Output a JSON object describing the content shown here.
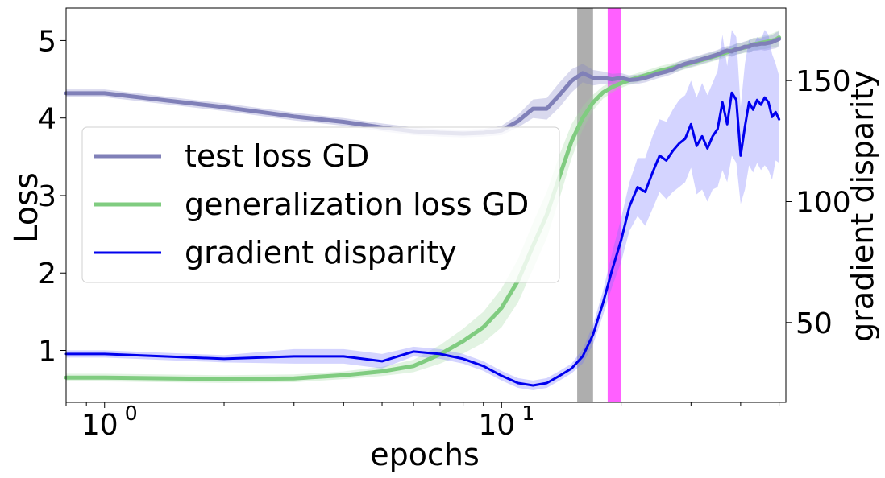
{
  "chart_data": {
    "type": "line",
    "title": "",
    "xlabel": "epochs",
    "ylabel_left": "Loss",
    "ylabel_right": "gradient disparity",
    "xscale": "log",
    "xlim": [
      0.8,
      52
    ],
    "ylim_left": [
      0.33,
      5.42
    ],
    "ylim_right": [
      17,
      180
    ],
    "x_ticks": [
      {
        "value": 1,
        "base": "10",
        "exp": "0"
      },
      {
        "value": 10,
        "base": "10",
        "exp": "1"
      }
    ],
    "y_ticks_left": [
      "1",
      "2",
      "3",
      "4",
      "5"
    ],
    "y_ticks_right": [
      "50",
      "100",
      "150"
    ],
    "legend": {
      "position": "center-left",
      "entries": [
        "test loss GD",
        "generalization loss GD",
        "gradient disparity"
      ]
    },
    "vertical_bands": [
      {
        "from": 15.5,
        "to": 17,
        "color": "#aaaaaa",
        "name": "gray-band"
      },
      {
        "from": 18.5,
        "to": 20,
        "color": "#ff44ff",
        "name": "magenta-band"
      }
    ],
    "series": [
      {
        "name": "test loss GD",
        "axis": "left",
        "color": "#8080b8",
        "band_color": "#8080c8",
        "x": [
          0.8,
          1,
          2,
          3,
          4,
          5,
          6,
          7,
          8,
          9,
          10,
          11,
          12,
          13,
          14,
          15,
          16,
          17,
          18,
          19,
          20,
          21,
          22,
          23,
          24,
          25,
          26,
          27,
          28,
          29,
          30,
          31,
          32,
          33,
          34,
          35,
          36,
          37,
          38,
          39,
          40,
          41,
          42,
          43,
          44,
          45,
          46,
          47,
          48,
          49,
          50
        ],
        "values": [
          4.32,
          4.32,
          4.14,
          4.02,
          3.95,
          3.88,
          3.83,
          3.81,
          3.8,
          3.81,
          3.84,
          3.96,
          4.12,
          4.12,
          4.3,
          4.48,
          4.58,
          4.52,
          4.52,
          4.5,
          4.52,
          4.49,
          4.5,
          4.52,
          4.55,
          4.58,
          4.6,
          4.63,
          4.67,
          4.7,
          4.72,
          4.74,
          4.76,
          4.78,
          4.8,
          4.82,
          4.85,
          4.87,
          4.86,
          4.89,
          4.9,
          4.92,
          4.92,
          4.95,
          4.95,
          4.96,
          4.96,
          4.97,
          4.98,
          5.0,
          5.02
        ],
        "band": [
          0.05,
          0.05,
          0.05,
          0.05,
          0.05,
          0.05,
          0.05,
          0.05,
          0.05,
          0.05,
          0.06,
          0.08,
          0.12,
          0.14,
          0.16,
          0.15,
          0.12,
          0.1,
          0.08,
          0.07,
          0.06,
          0.06,
          0.06,
          0.06,
          0.06,
          0.06,
          0.06,
          0.06,
          0.06,
          0.06,
          0.06,
          0.06,
          0.06,
          0.06,
          0.06,
          0.06,
          0.06,
          0.06,
          0.07,
          0.07,
          0.07,
          0.07,
          0.08,
          0.08,
          0.08,
          0.08,
          0.09,
          0.09,
          0.09,
          0.1,
          0.1
        ]
      },
      {
        "name": "generalization loss GD",
        "axis": "left",
        "color": "#80cc80",
        "band_color": "#9ed89e",
        "x": [
          0.8,
          1,
          2,
          3,
          4,
          5,
          6,
          7,
          8,
          9,
          10,
          11,
          12,
          13,
          14,
          15,
          16,
          17,
          18,
          19,
          20,
          21,
          22,
          23,
          24,
          25,
          26,
          27,
          28,
          29,
          30,
          31,
          32,
          33,
          34,
          35,
          36,
          37,
          38,
          39,
          40,
          41,
          42,
          43,
          44,
          45,
          46,
          47,
          48,
          49,
          50
        ],
        "values": [
          0.65,
          0.65,
          0.63,
          0.64,
          0.68,
          0.73,
          0.8,
          0.95,
          1.12,
          1.3,
          1.55,
          1.9,
          2.35,
          2.75,
          3.25,
          3.7,
          4.0,
          4.2,
          4.33,
          4.4,
          4.45,
          4.49,
          4.52,
          4.55,
          4.58,
          4.61,
          4.63,
          4.65,
          4.67,
          4.69,
          4.71,
          4.73,
          4.75,
          4.77,
          4.79,
          4.81,
          4.83,
          4.85,
          4.87,
          4.89,
          4.9,
          4.91,
          4.93,
          4.95,
          4.96,
          4.97,
          4.98,
          4.99,
          5.0,
          5.01,
          5.04
        ],
        "band": [
          0.05,
          0.05,
          0.05,
          0.05,
          0.05,
          0.06,
          0.08,
          0.12,
          0.16,
          0.2,
          0.25,
          0.28,
          0.3,
          0.3,
          0.28,
          0.22,
          0.15,
          0.1,
          0.08,
          0.07,
          0.06,
          0.06,
          0.06,
          0.06,
          0.06,
          0.06,
          0.06,
          0.06,
          0.06,
          0.06,
          0.06,
          0.06,
          0.06,
          0.06,
          0.06,
          0.06,
          0.06,
          0.06,
          0.07,
          0.07,
          0.07,
          0.07,
          0.08,
          0.08,
          0.08,
          0.08,
          0.09,
          0.09,
          0.09,
          0.1,
          0.1
        ]
      },
      {
        "name": "gradient disparity",
        "axis": "right",
        "color": "#0000ee",
        "band_color": "#7070ff",
        "x": [
          0.8,
          1,
          2,
          3,
          4,
          5,
          6,
          7,
          8,
          9,
          10,
          11,
          12,
          13,
          14,
          15,
          16,
          17,
          18,
          19,
          20,
          21,
          22,
          23,
          24,
          25,
          26,
          27,
          28,
          29,
          30,
          31,
          32,
          33,
          34,
          35,
          36,
          37,
          38,
          39,
          40,
          41,
          42,
          43,
          44,
          45,
          46,
          47,
          48,
          49,
          50
        ],
        "values": [
          37,
          37,
          35,
          36,
          36,
          34,
          38,
          37,
          35,
          32,
          28,
          25,
          24,
          25,
          28,
          31,
          36,
          45,
          58,
          72,
          84,
          98,
          106,
          104,
          112,
          119,
          117,
          121,
          124,
          126,
          132,
          123,
          127,
          122,
          127,
          130,
          141,
          132,
          145,
          142,
          119,
          131,
          141,
          138,
          142,
          140,
          143,
          141,
          135,
          137,
          134
        ],
        "band": [
          1.5,
          1.5,
          1.5,
          3,
          3,
          3,
          2,
          2,
          2,
          2,
          2,
          2,
          2,
          2,
          2,
          2,
          3,
          4,
          5,
          7,
          9,
          10,
          12,
          14,
          15,
          15,
          16,
          17,
          18,
          18,
          18,
          20,
          22,
          22,
          22,
          24,
          28,
          24,
          26,
          26,
          20,
          26,
          26,
          26,
          26,
          27,
          28,
          28,
          26,
          20,
          18
        ]
      }
    ]
  }
}
